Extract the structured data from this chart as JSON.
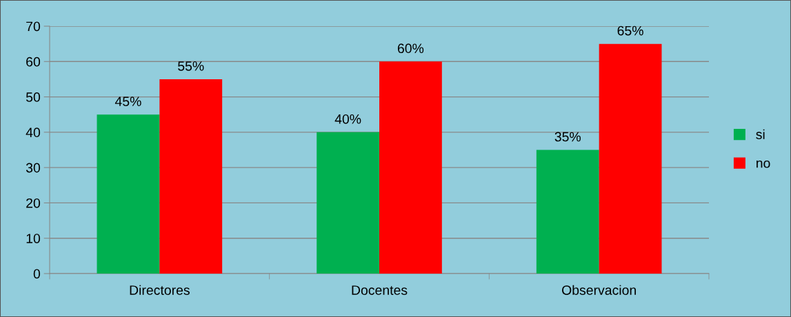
{
  "chart_data": {
    "type": "bar",
    "categories": [
      "Directores",
      "Docentes",
      "Observacion"
    ],
    "series": [
      {
        "name": "si",
        "color": "#00b050",
        "values": [
          45,
          40,
          35
        ],
        "value_labels": [
          "45%",
          "40%",
          "35%"
        ]
      },
      {
        "name": "no",
        "color": "#ff0000",
        "values": [
          55,
          60,
          65
        ],
        "value_labels": [
          "55%",
          "60%",
          "65%"
        ]
      }
    ],
    "ylim": [
      0,
      70
    ],
    "yticks": [
      0,
      10,
      20,
      30,
      40,
      50,
      60,
      70
    ],
    "grid": "y",
    "legend": "right"
  }
}
